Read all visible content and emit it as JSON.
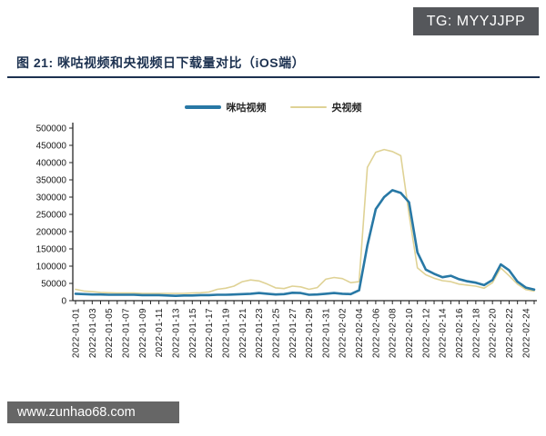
{
  "header": {
    "tg_badge": "TG: MYYJJPP"
  },
  "figure": {
    "title": "图 21: 咪咕视频和央视频日下载量对比（iOS端）"
  },
  "footer": {
    "watermark": "www.zunhao68.com"
  },
  "colors": {
    "title_navy": "#1c3150",
    "rule_navy": "#1c3150",
    "badge_top_gray": "#55575b",
    "badge_bottom_gray": "#666666",
    "axis": "#262626"
  },
  "chart_data": {
    "type": "line",
    "title": "咪咕视频和央视频日下载量对比（iOS端）",
    "xlabel": "",
    "ylabel": "",
    "ylim": [
      0,
      500000
    ],
    "y_tick_step": 50000,
    "x_tick_label_every": 2,
    "grid": false,
    "legend_position": "top",
    "x": [
      "2022-01-01",
      "2022-01-02",
      "2022-01-03",
      "2022-01-04",
      "2022-01-05",
      "2022-01-06",
      "2022-01-07",
      "2022-01-08",
      "2022-01-09",
      "2022-01-10",
      "2022-01-11",
      "2022-01-12",
      "2022-01-13",
      "2022-01-14",
      "2022-01-15",
      "2022-01-16",
      "2022-01-17",
      "2022-01-18",
      "2022-01-19",
      "2022-01-20",
      "2022-01-21",
      "2022-01-22",
      "2022-01-23",
      "2022-01-24",
      "2022-01-25",
      "2022-01-26",
      "2022-01-27",
      "2022-01-28",
      "2022-01-29",
      "2022-01-30",
      "2022-01-31",
      "2022-02-01",
      "2022-02-02",
      "2022-02-03",
      "2022-02-04",
      "2022-02-05",
      "2022-02-06",
      "2022-02-07",
      "2022-02-08",
      "2022-02-09",
      "2022-02-10",
      "2022-02-11",
      "2022-02-12",
      "2022-02-13",
      "2022-02-14",
      "2022-02-15",
      "2022-02-16",
      "2022-02-17",
      "2022-02-18",
      "2022-02-19",
      "2022-02-20",
      "2022-02-21",
      "2022-02-22",
      "2022-02-23",
      "2022-02-24",
      "2022-02-25"
    ],
    "series": [
      {
        "name": "咪咕视频",
        "color": "#2878A5",
        "stroke_width": 2.6,
        "values": [
          20000,
          19000,
          18000,
          18000,
          17000,
          17000,
          17000,
          17000,
          16000,
          16000,
          16000,
          15000,
          14000,
          15000,
          15000,
          16000,
          16000,
          17000,
          17000,
          18000,
          19000,
          20000,
          22000,
          20000,
          18000,
          19000,
          23000,
          22000,
          17000,
          18000,
          20000,
          22000,
          20000,
          19000,
          30000,
          160000,
          265000,
          300000,
          320000,
          312000,
          285000,
          140000,
          90000,
          78000,
          68000,
          72000,
          62000,
          56000,
          52000,
          45000,
          60000,
          105000,
          88000,
          55000,
          38000,
          32000
        ]
      },
      {
        "name": "央视频",
        "color": "#DFD295",
        "stroke_width": 1.6,
        "values": [
          33000,
          28000,
          26000,
          24000,
          23000,
          22000,
          22000,
          22000,
          21000,
          21000,
          21000,
          21000,
          21000,
          21000,
          22000,
          23000,
          25000,
          33000,
          36000,
          42000,
          55000,
          60000,
          57000,
          48000,
          37000,
          35000,
          42000,
          40000,
          33000,
          38000,
          62000,
          67000,
          64000,
          52000,
          55000,
          386000,
          430000,
          438000,
          432000,
          420000,
          250000,
          95000,
          75000,
          65000,
          58000,
          55000,
          48000,
          45000,
          42000,
          36000,
          52000,
          95000,
          72000,
          48000,
          32000,
          28000
        ]
      }
    ]
  }
}
